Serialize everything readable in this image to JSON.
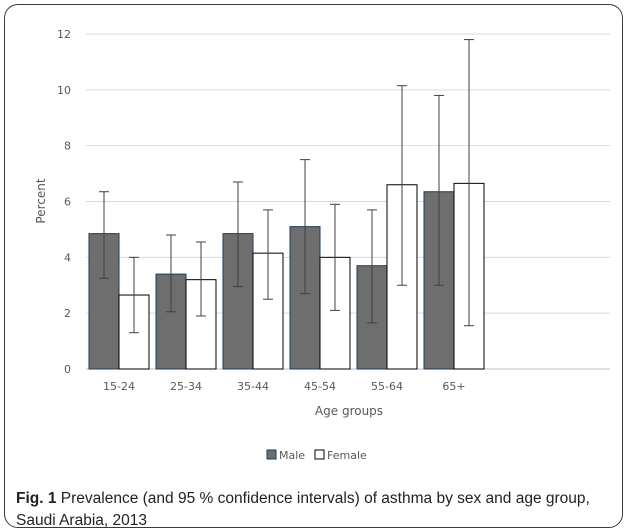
{
  "figure": {
    "caption_label": "Fig. 1",
    "caption_text": "Prevalence (and 95 % confidence intervals) of asthma by sex and age group, Saudi Arabia, 2013"
  },
  "chart_data": {
    "type": "bar",
    "categories": [
      "15-24",
      "25-34",
      "35-44",
      "45-54",
      "55-64",
      "65+"
    ],
    "series": [
      {
        "name": "Male",
        "color": "#6e6e6e",
        "values": [
          4.85,
          3.4,
          4.85,
          5.1,
          3.7,
          6.35
        ],
        "ci_low": [
          3.25,
          2.05,
          2.95,
          2.7,
          1.65,
          3.0
        ],
        "ci_high": [
          6.35,
          4.8,
          6.7,
          7.5,
          5.7,
          9.8
        ]
      },
      {
        "name": "Female",
        "color": "#ffffff",
        "values": [
          2.65,
          3.2,
          4.15,
          4.0,
          6.6,
          6.65
        ],
        "ci_low": [
          1.3,
          1.9,
          2.5,
          2.1,
          3.0,
          1.55
        ],
        "ci_high": [
          4.0,
          4.55,
          5.7,
          5.9,
          10.15,
          11.8
        ]
      }
    ],
    "xlabel": "Age groups",
    "ylabel": "Percent",
    "ylim": [
      0,
      12
    ],
    "yticks": [
      0,
      2,
      4,
      6,
      8,
      10,
      12
    ],
    "grid": true,
    "legend_position": "bottom"
  }
}
